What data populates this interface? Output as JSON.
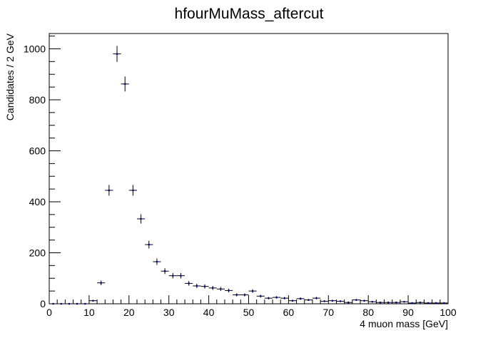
{
  "chart_data": {
    "type": "scatter",
    "style": "histogram-with-error-bars",
    "title": "hfourMuMass_aftercut",
    "xlabel": "4 muon mass [GeV]",
    "ylabel": "Candidates / 2 GeV",
    "xlim": [
      0,
      100
    ],
    "ylim": [
      0,
      1060
    ],
    "bin_width": 2,
    "x_ticks": [
      0,
      10,
      20,
      30,
      40,
      50,
      60,
      70,
      80,
      90,
      100
    ],
    "y_ticks": [
      0,
      200,
      400,
      600,
      800,
      1000
    ],
    "grid": false,
    "legend": "none",
    "marker_color": "#000080",
    "series": [
      {
        "x": [
          1,
          3,
          5,
          7,
          9,
          11,
          13,
          15,
          17,
          19,
          21,
          23,
          25,
          27,
          29,
          31,
          33,
          35,
          37,
          39,
          41,
          43,
          45,
          47,
          49,
          51,
          53,
          55,
          57,
          59,
          61,
          63,
          65,
          67,
          69,
          71,
          73,
          75,
          77,
          79,
          81,
          83,
          85,
          87,
          89,
          91,
          93,
          95,
          97,
          99
        ],
        "values": [
          0,
          0,
          0,
          0,
          0,
          12,
          82,
          445,
          980,
          862,
          445,
          333,
          232,
          165,
          128,
          110,
          110,
          80,
          70,
          68,
          62,
          58,
          52,
          35,
          35,
          50,
          30,
          22,
          25,
          22,
          12,
          20,
          15,
          22,
          10,
          12,
          10,
          5,
          15,
          12,
          8,
          5,
          5,
          5,
          8,
          3,
          5,
          3,
          3,
          3
        ]
      }
    ]
  }
}
